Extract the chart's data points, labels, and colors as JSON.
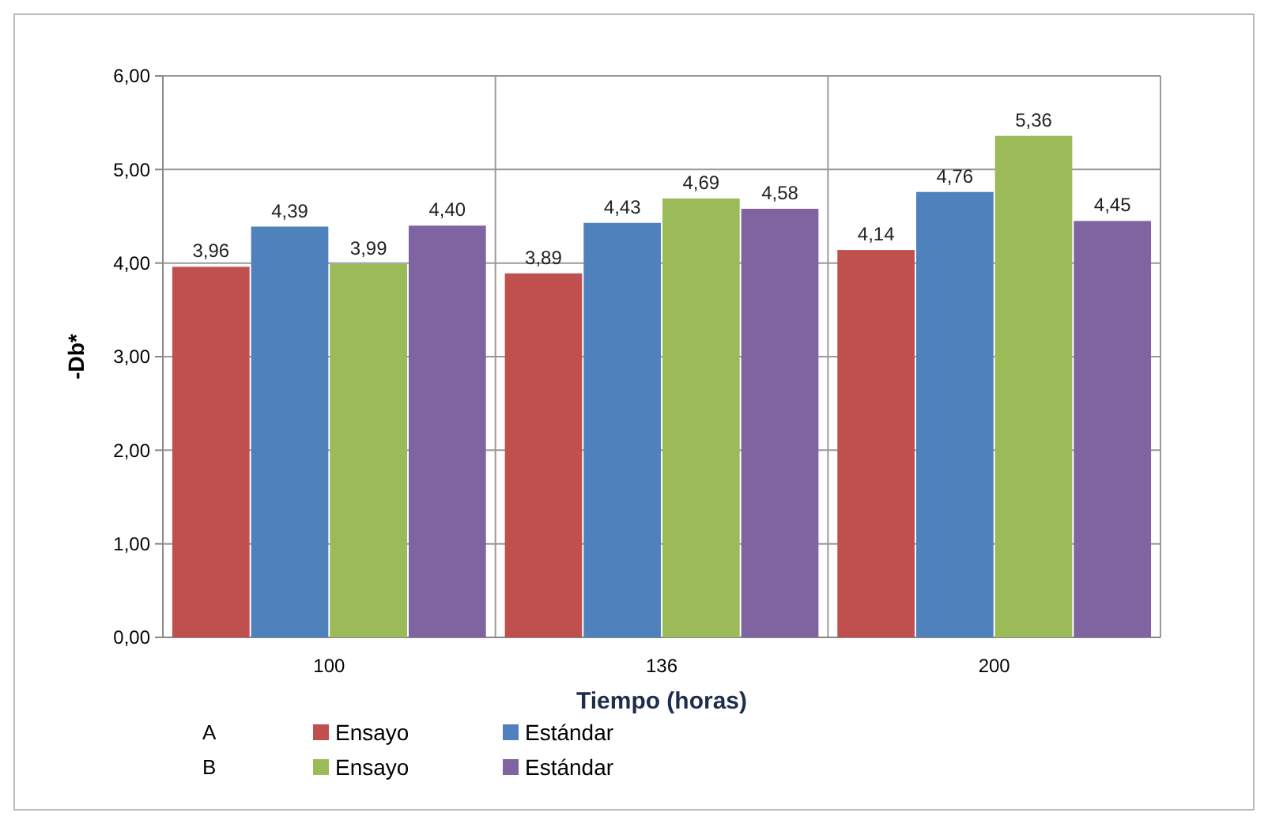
{
  "chart_data": {
    "type": "bar",
    "xlabel": "Tiempo (horas)",
    "ylabel": "-Db*",
    "categories": [
      "100",
      "136",
      "200"
    ],
    "series": [
      {
        "name": "Ensayo",
        "color": "#c0504d",
        "values": [
          3.96,
          3.89,
          4.14
        ],
        "value_labels": [
          "3,96",
          "3,89",
          "4,14"
        ]
      },
      {
        "name": "Estándar",
        "color": "#4f81bd",
        "values": [
          4.39,
          4.43,
          4.76
        ],
        "value_labels": [
          "4,39",
          "4,43",
          "4,76"
        ]
      },
      {
        "name": "Ensayo",
        "color": "#9bbb59",
        "values": [
          3.99,
          4.69,
          5.36
        ],
        "value_labels": [
          "3,99",
          "4,69",
          "5,36"
        ]
      },
      {
        "name": "Estándar",
        "color": "#8064a2",
        "values": [
          4.4,
          4.58,
          4.45
        ],
        "value_labels": [
          "4,40",
          "4,58",
          "4,45"
        ]
      }
    ],
    "ylim": [
      0,
      6
    ],
    "yticks": [
      {
        "value": 0,
        "label": "0,00"
      },
      {
        "value": 1,
        "label": "1,00"
      },
      {
        "value": 2,
        "label": "2,00"
      },
      {
        "value": 3,
        "label": "3,00"
      },
      {
        "value": 4,
        "label": "4,00"
      },
      {
        "value": 5,
        "label": "5,00"
      },
      {
        "value": 6,
        "label": "6,00"
      }
    ],
    "grid": true,
    "legend": "bottom",
    "annotations": [
      "A",
      "B"
    ]
  }
}
